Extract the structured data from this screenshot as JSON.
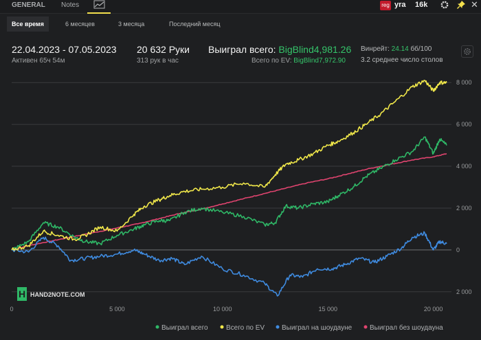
{
  "tabs": {
    "general": "GENERAL",
    "notes": "Notes"
  },
  "user": {
    "region_badge": "reg",
    "nickname": "yra",
    "hands_short": "16k"
  },
  "periods": [
    "Все время",
    "6 месяцев",
    "3 месяца",
    "Последний месяц"
  ],
  "summary": {
    "date_range": "22.04.2023 - 07.05.2023",
    "active_time": "Активен 65ч 54м",
    "hands_label": "20 632 Руки",
    "hands_per_hour": "313 рук в час",
    "won_label": "Выиграл всего:",
    "won_value": "BigBlind4,981.26",
    "ev_label": "Всего по EV:",
    "ev_value": "BigBlind7,972.90",
    "winrate_label": "Винрейт:",
    "winrate_value": "24.14",
    "winrate_unit": "бб/100",
    "tables_text": "3.2 среднее число столов"
  },
  "logo": {
    "text": "HAND2NOTE.COM"
  },
  "colors": {
    "won": "#2fb867",
    "ev": "#f1e84a",
    "showdown": "#3f8be0",
    "nonshowdown": "#e0446f",
    "accent": "#f4e04d"
  },
  "chart_data": {
    "type": "line",
    "x_ticks": [
      {
        "value": 0,
        "label": "0"
      },
      {
        "value": 5000,
        "label": "5 000"
      },
      {
        "value": 10000,
        "label": "10 000"
      },
      {
        "value": 15000,
        "label": "15 000"
      },
      {
        "value": 20000,
        "label": "20 000"
      }
    ],
    "y_ticks": [
      {
        "value": -2000,
        "label": "2 000"
      },
      {
        "value": 0,
        "label": "0"
      },
      {
        "value": 2000,
        "label": "2 000"
      },
      {
        "value": 4000,
        "label": "4 000"
      },
      {
        "value": 6000,
        "label": "6 000"
      },
      {
        "value": 8000,
        "label": "8 000"
      }
    ],
    "xlim": [
      0,
      20632
    ],
    "ylim": [
      -2500,
      8500
    ],
    "series": [
      {
        "name": "Выиграл всего",
        "key": "won",
        "x": [
          0,
          800,
          1500,
          2200,
          3000,
          3500,
          4200,
          5000,
          5800,
          6300,
          7000,
          7500,
          8200,
          9000,
          10000,
          11000,
          12000,
          12500,
          13000,
          13600,
          14300,
          15000,
          15500,
          16200,
          16800,
          17500,
          18200,
          19000,
          19600,
          20000,
          20300,
          20632
        ],
        "values": [
          0,
          400,
          1300,
          1100,
          600,
          400,
          300,
          700,
          1000,
          1200,
          1400,
          1400,
          1800,
          2000,
          1800,
          1600,
          1200,
          1300,
          2100,
          2000,
          2200,
          2300,
          2600,
          3000,
          3500,
          3900,
          4300,
          4700,
          5400,
          4600,
          5300,
          5000
        ]
      },
      {
        "name": "Всего по EV",
        "key": "ev",
        "x": [
          0,
          800,
          1500,
          2200,
          3000,
          3500,
          4200,
          5000,
          5800,
          6300,
          7000,
          7500,
          8200,
          9000,
          10000,
          11000,
          12000,
          12500,
          13000,
          13600,
          14300,
          15000,
          15500,
          16200,
          16800,
          17500,
          18200,
          19000,
          19600,
          20000,
          20300,
          20632
        ],
        "values": [
          0,
          200,
          900,
          700,
          500,
          700,
          1100,
          900,
          1700,
          2100,
          2400,
          2600,
          2800,
          2900,
          3000,
          3200,
          3000,
          3600,
          4100,
          4300,
          4600,
          5000,
          5200,
          5600,
          6000,
          6500,
          7100,
          7800,
          8100,
          7600,
          8000,
          8000
        ]
      },
      {
        "name": "Выиграл на шоудауне",
        "key": "showdown",
        "x": [
          0,
          800,
          1500,
          2200,
          2800,
          3500,
          4200,
          5000,
          5800,
          6300,
          7000,
          7600,
          8200,
          9000,
          10000,
          11000,
          12000,
          12600,
          13200,
          13800,
          14500,
          15200,
          15800,
          16500,
          17200,
          17800,
          18500,
          19000,
          19600,
          20000,
          20300,
          20632
        ],
        "values": [
          0,
          -100,
          600,
          200,
          -500,
          -400,
          -300,
          -200,
          0,
          -200,
          -500,
          -400,
          -700,
          -300,
          -900,
          -1200,
          -1600,
          -2200,
          -1200,
          -1300,
          -900,
          -900,
          -700,
          -400,
          -600,
          -300,
          100,
          600,
          800,
          0,
          400,
          300
        ]
      },
      {
        "name": "Выиграл без шоудауна",
        "key": "nonshowdown",
        "x": [
          0,
          1000,
          2000,
          3000,
          4000,
          5000,
          6000,
          7000,
          8000,
          9000,
          10000,
          11000,
          12000,
          13000,
          14000,
          15000,
          16000,
          17000,
          18000,
          19000,
          20000,
          20632
        ],
        "values": [
          0,
          250,
          450,
          650,
          850,
          1050,
          1250,
          1500,
          1750,
          1950,
          2200,
          2450,
          2700,
          2950,
          3200,
          3400,
          3650,
          3900,
          4100,
          4300,
          4450,
          4600
        ]
      }
    ]
  }
}
